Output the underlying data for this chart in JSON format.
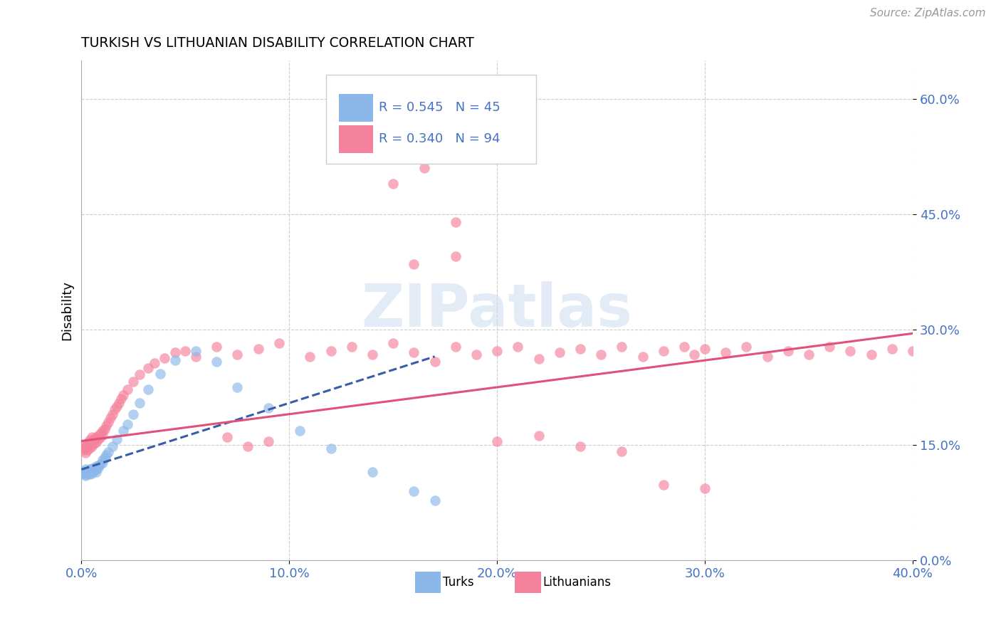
{
  "title": "TURKISH VS LITHUANIAN DISABILITY CORRELATION CHART",
  "source": "Source: ZipAtlas.com",
  "ylabel": "Disability",
  "xmin": 0.0,
  "xmax": 0.4,
  "ymin": 0.0,
  "ymax": 0.65,
  "yticks": [
    0.0,
    0.15,
    0.3,
    0.45,
    0.6
  ],
  "xticks": [
    0.0,
    0.1,
    0.2,
    0.3,
    0.4
  ],
  "turks_color": "#8bb8e8",
  "lithuanians_color": "#f4829c",
  "turks_line_color": "#3a5aaa",
  "lithuanians_line_color": "#e0507a",
  "axis_tick_color": "#4472c4",
  "watermark_color": "#ccddf0",
  "R_turks": 0.545,
  "N_turks": 45,
  "R_lithuanians": 0.34,
  "N_lithuanians": 94,
  "turks_x": [
    0.001,
    0.001,
    0.002,
    0.002,
    0.002,
    0.003,
    0.003,
    0.003,
    0.004,
    0.004,
    0.004,
    0.005,
    0.005,
    0.005,
    0.006,
    0.006,
    0.007,
    0.007,
    0.007,
    0.008,
    0.008,
    0.009,
    0.01,
    0.01,
    0.011,
    0.012,
    0.013,
    0.015,
    0.017,
    0.02,
    0.022,
    0.025,
    0.028,
    0.032,
    0.038,
    0.045,
    0.055,
    0.065,
    0.075,
    0.09,
    0.105,
    0.12,
    0.14,
    0.16,
    0.17
  ],
  "turks_y": [
    0.113,
    0.116,
    0.11,
    0.118,
    0.112,
    0.114,
    0.116,
    0.113,
    0.115,
    0.118,
    0.112,
    0.116,
    0.119,
    0.113,
    0.117,
    0.12,
    0.115,
    0.118,
    0.122,
    0.12,
    0.123,
    0.125,
    0.127,
    0.13,
    0.133,
    0.137,
    0.141,
    0.148,
    0.157,
    0.168,
    0.177,
    0.19,
    0.205,
    0.222,
    0.243,
    0.26,
    0.272,
    0.258,
    0.225,
    0.198,
    0.168,
    0.145,
    0.115,
    0.09,
    0.078
  ],
  "lithuanians_x": [
    0.001,
    0.001,
    0.002,
    0.002,
    0.002,
    0.003,
    0.003,
    0.003,
    0.004,
    0.004,
    0.004,
    0.005,
    0.005,
    0.005,
    0.006,
    0.006,
    0.007,
    0.007,
    0.008,
    0.008,
    0.009,
    0.009,
    0.01,
    0.01,
    0.011,
    0.012,
    0.013,
    0.014,
    0.015,
    0.016,
    0.017,
    0.018,
    0.019,
    0.02,
    0.022,
    0.025,
    0.028,
    0.032,
    0.035,
    0.04,
    0.045,
    0.05,
    0.055,
    0.065,
    0.075,
    0.085,
    0.095,
    0.11,
    0.12,
    0.13,
    0.14,
    0.15,
    0.16,
    0.17,
    0.18,
    0.19,
    0.2,
    0.21,
    0.22,
    0.23,
    0.24,
    0.25,
    0.26,
    0.27,
    0.28,
    0.29,
    0.295,
    0.3,
    0.31,
    0.32,
    0.33,
    0.34,
    0.35,
    0.36,
    0.37,
    0.38,
    0.39,
    0.4,
    0.2,
    0.22,
    0.24,
    0.26,
    0.28,
    0.3,
    0.16,
    0.18,
    0.13,
    0.14,
    0.15,
    0.165,
    0.18,
    0.07,
    0.08,
    0.09
  ],
  "lithuanians_y": [
    0.143,
    0.148,
    0.14,
    0.146,
    0.151,
    0.143,
    0.148,
    0.153,
    0.146,
    0.151,
    0.156,
    0.148,
    0.154,
    0.16,
    0.152,
    0.157,
    0.154,
    0.16,
    0.157,
    0.162,
    0.16,
    0.165,
    0.163,
    0.168,
    0.17,
    0.175,
    0.18,
    0.185,
    0.19,
    0.196,
    0.2,
    0.205,
    0.21,
    0.215,
    0.222,
    0.232,
    0.242,
    0.25,
    0.256,
    0.263,
    0.27,
    0.272,
    0.265,
    0.278,
    0.268,
    0.275,
    0.282,
    0.265,
    0.272,
    0.278,
    0.268,
    0.282,
    0.27,
    0.258,
    0.278,
    0.268,
    0.272,
    0.278,
    0.262,
    0.27,
    0.275,
    0.268,
    0.278,
    0.265,
    0.272,
    0.278,
    0.268,
    0.275,
    0.27,
    0.278,
    0.265,
    0.272,
    0.268,
    0.278,
    0.272,
    0.268,
    0.275,
    0.272,
    0.155,
    0.162,
    0.148,
    0.142,
    0.098,
    0.093,
    0.385,
    0.395,
    0.55,
    0.56,
    0.49,
    0.51,
    0.44,
    0.16,
    0.148,
    0.155
  ],
  "turks_line_x": [
    0.0,
    0.17
  ],
  "turks_line_y": [
    0.118,
    0.265
  ],
  "lithuanians_line_x": [
    0.0,
    0.4
  ],
  "lithuanians_line_y": [
    0.155,
    0.295
  ]
}
